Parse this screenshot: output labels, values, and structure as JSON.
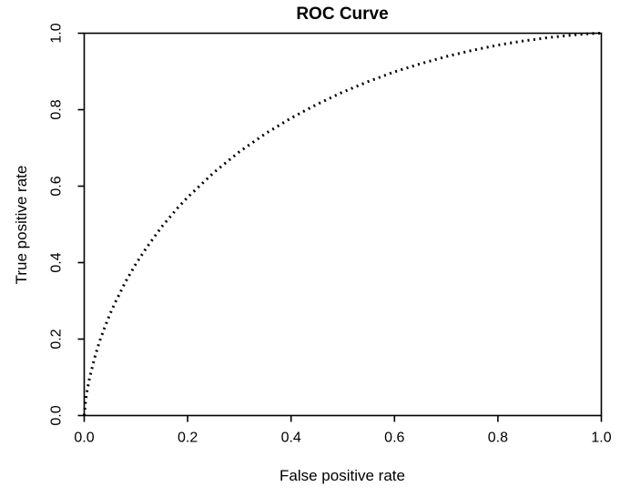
{
  "chart_data": {
    "type": "line",
    "title": "ROC Curve",
    "xlabel": "False positive rate",
    "ylabel": "True positive rate",
    "xlim": [
      0,
      1
    ],
    "ylim": [
      0,
      1
    ],
    "grid": false,
    "legend": "none",
    "box": true,
    "line_style": "dotted",
    "line_color": "#000000",
    "background_color": "#ffffff",
    "x_ticks": [
      0,
      0.2,
      0.4,
      0.6,
      0.8,
      1
    ],
    "x_tick_labels": [
      "0.0",
      "0.2",
      "0.4",
      "0.6",
      "0.8",
      "1.0"
    ],
    "y_ticks": [
      0,
      0.2,
      0.4,
      0.6,
      0.8,
      1
    ],
    "y_tick_labels": [
      "0.0",
      "0.2",
      "0.4",
      "0.6",
      "0.8",
      "1.0"
    ],
    "series": [
      {
        "name": "ROC curve",
        "points": [
          [
            0,
            0
          ],
          [
            0.003,
            0.042
          ],
          [
            0.005,
            0.06
          ],
          [
            0.01,
            0.096
          ],
          [
            0.02,
            0.151
          ],
          [
            0.03,
            0.195
          ],
          [
            0.04,
            0.232
          ],
          [
            0.05,
            0.266
          ],
          [
            0.06,
            0.296
          ],
          [
            0.08,
            0.35
          ],
          [
            0.1,
            0.397
          ],
          [
            0.12,
            0.438
          ],
          [
            0.15,
            0.494
          ],
          [
            0.18,
            0.542
          ],
          [
            0.2,
            0.571
          ],
          [
            0.25,
            0.635
          ],
          [
            0.3,
            0.69
          ],
          [
            0.35,
            0.737
          ],
          [
            0.4,
            0.778
          ],
          [
            0.45,
            0.814
          ],
          [
            0.5,
            0.846
          ],
          [
            0.55,
            0.874
          ],
          [
            0.6,
            0.899
          ],
          [
            0.65,
            0.92
          ],
          [
            0.7,
            0.939
          ],
          [
            0.75,
            0.955
          ],
          [
            0.8,
            0.969
          ],
          [
            0.85,
            0.98
          ],
          [
            0.9,
            0.989
          ],
          [
            0.95,
            0.996
          ],
          [
            0.98,
            0.999
          ],
          [
            1,
            1
          ]
        ]
      }
    ]
  }
}
